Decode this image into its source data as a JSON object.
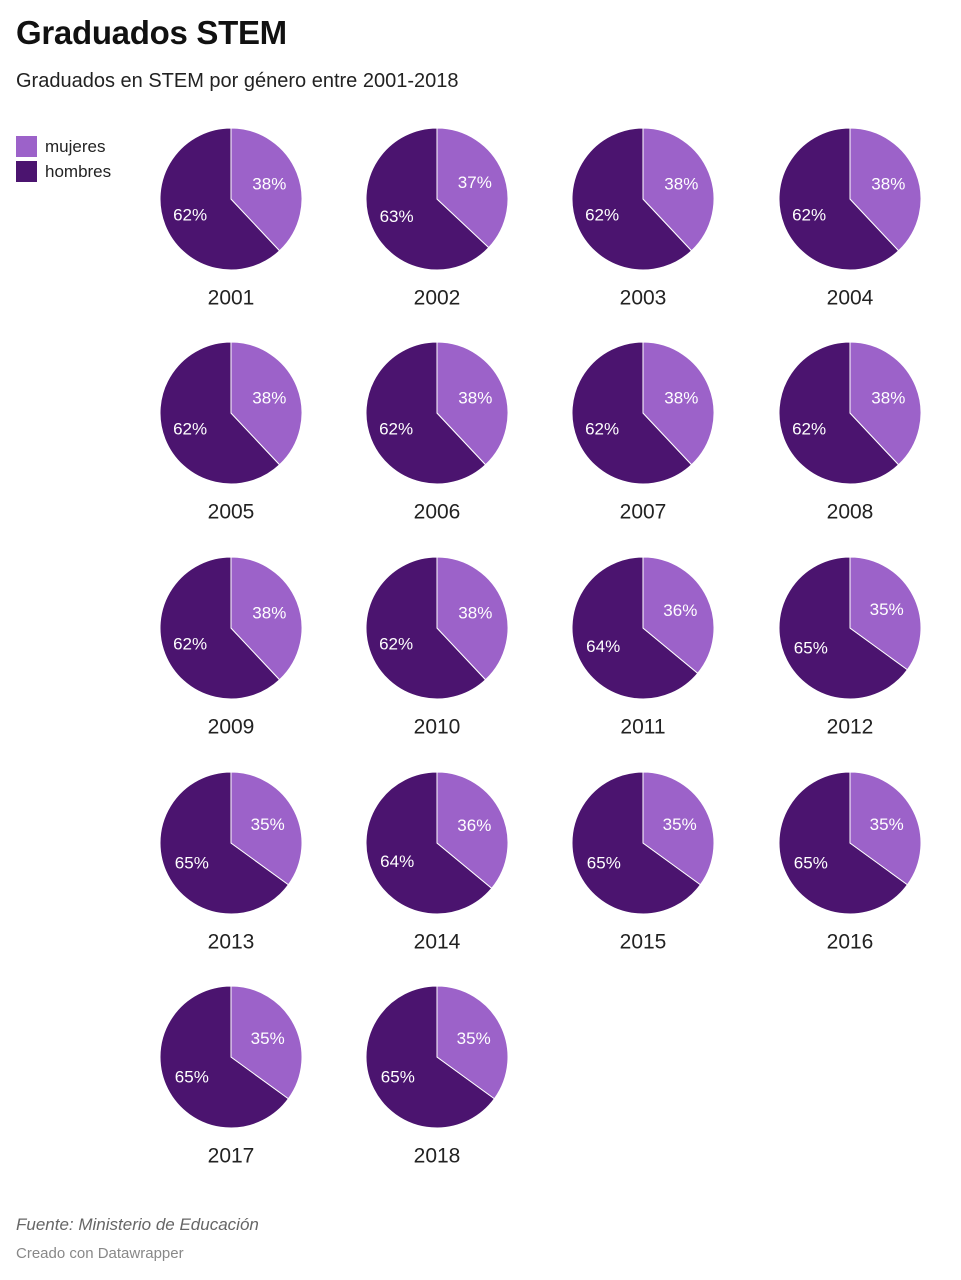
{
  "header": {
    "title": "Graduados STEM",
    "subtitle": "Graduados en STEM por género entre 2001-2018"
  },
  "legend": {
    "items": [
      {
        "label": "mujeres",
        "color": "#9c62c9"
      },
      {
        "label": "hombres",
        "color": "#4b146f"
      }
    ]
  },
  "footer": {
    "source": "Fuente: Ministerio de Educación",
    "credit": "Creado con Datawrapper"
  },
  "chart_data": {
    "type": "pie",
    "series_names": [
      "mujeres",
      "hombres"
    ],
    "colors": {
      "mujeres": "#9c62c9",
      "hombres": "#4b146f"
    },
    "pies": [
      {
        "year": "2001",
        "mujeres": 38,
        "hombres": 62
      },
      {
        "year": "2002",
        "mujeres": 37,
        "hombres": 63
      },
      {
        "year": "2003",
        "mujeres": 38,
        "hombres": 62
      },
      {
        "year": "2004",
        "mujeres": 38,
        "hombres": 62
      },
      {
        "year": "2005",
        "mujeres": 38,
        "hombres": 62
      },
      {
        "year": "2006",
        "mujeres": 38,
        "hombres": 62
      },
      {
        "year": "2007",
        "mujeres": 38,
        "hombres": 62
      },
      {
        "year": "2008",
        "mujeres": 38,
        "hombres": 62
      },
      {
        "year": "2009",
        "mujeres": 38,
        "hombres": 62
      },
      {
        "year": "2010",
        "mujeres": 38,
        "hombres": 62
      },
      {
        "year": "2011",
        "mujeres": 36,
        "hombres": 64
      },
      {
        "year": "2012",
        "mujeres": 35,
        "hombres": 65
      },
      {
        "year": "2013",
        "mujeres": 35,
        "hombres": 65
      },
      {
        "year": "2014",
        "mujeres": 36,
        "hombres": 64
      },
      {
        "year": "2015",
        "mujeres": 35,
        "hombres": 65
      },
      {
        "year": "2016",
        "mujeres": 35,
        "hombres": 65
      },
      {
        "year": "2017",
        "mujeres": 35,
        "hombres": 65
      },
      {
        "year": "2018",
        "mujeres": 35,
        "hombres": 65
      }
    ]
  }
}
